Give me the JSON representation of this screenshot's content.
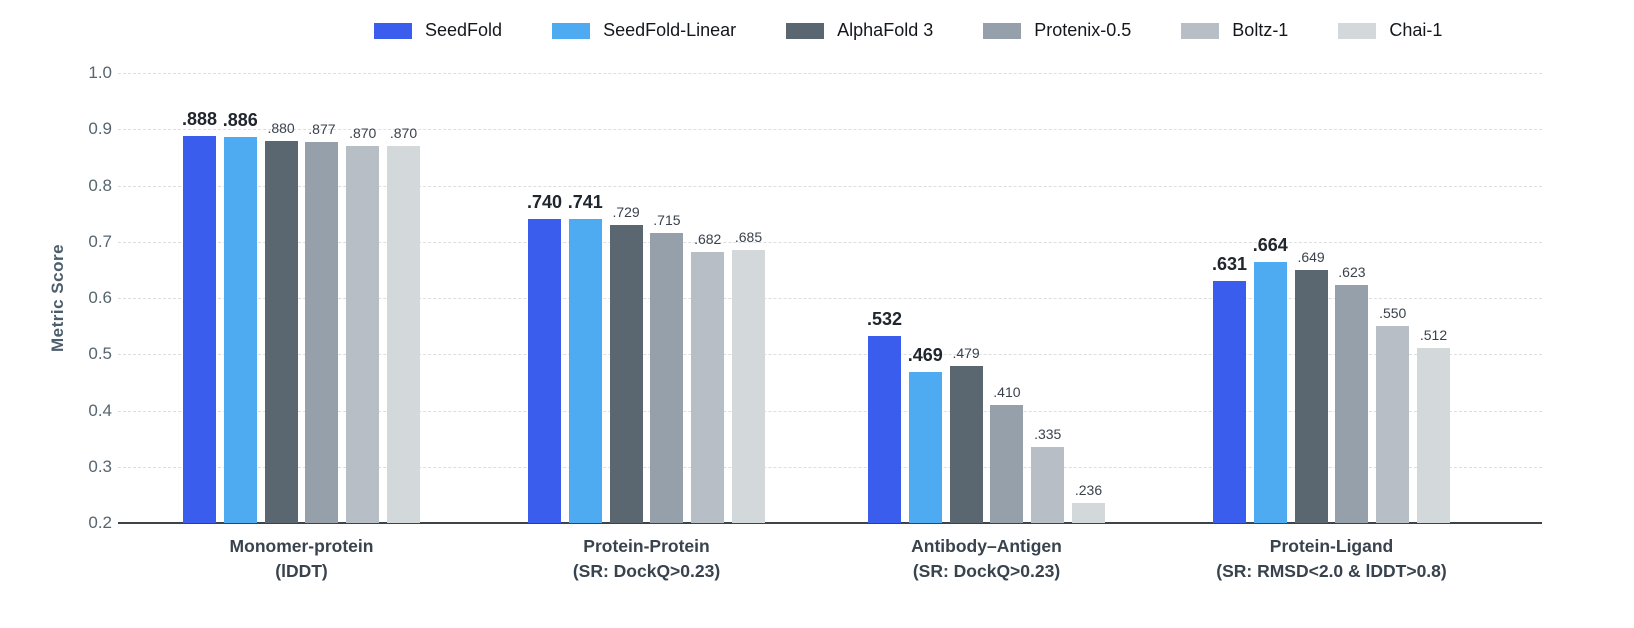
{
  "chart_data": {
    "type": "bar",
    "title": "",
    "xlabel": "",
    "ylabel": "Metric Score",
    "ylim": [
      0.2,
      1.0
    ],
    "yticks": [
      0.2,
      0.3,
      0.4,
      0.5,
      0.6,
      0.7,
      0.8,
      0.9,
      1.0
    ],
    "grid": "horizontal-dashed",
    "legend_position": "top-center",
    "background_color": "#ffffff",
    "axis_line_color": "#3c434a",
    "categories": [
      {
        "label": "Monomer-protein",
        "sublabel": "(lDDT)"
      },
      {
        "label": "Protein-Protein",
        "sublabel": "(SR: DockQ>0.23)"
      },
      {
        "label": "Antibody–Antigen",
        "sublabel": "(SR: DockQ>0.23)"
      },
      {
        "label": "Protein-Ligand",
        "sublabel": "(SR: RMSD<2.0 & lDDT>0.8)"
      }
    ],
    "series": [
      {
        "name": "SeedFold",
        "color": "#3B5DEE",
        "label_bold": true,
        "values": [
          0.888,
          0.74,
          0.532,
          0.631
        ]
      },
      {
        "name": "SeedFold-Linear",
        "color": "#4FABF1",
        "label_bold": true,
        "values": [
          0.886,
          0.741,
          0.469,
          0.664
        ]
      },
      {
        "name": "AlphaFold 3",
        "color": "#5A6771",
        "label_bold": false,
        "values": [
          0.88,
          0.729,
          0.479,
          0.649
        ]
      },
      {
        "name": "Protenix-0.5",
        "color": "#95A0AA",
        "label_bold": false,
        "values": [
          0.877,
          0.715,
          0.41,
          0.623
        ]
      },
      {
        "name": "Boltz-1",
        "color": "#B7BEC5",
        "label_bold": false,
        "values": [
          0.87,
          0.682,
          0.335,
          0.55
        ]
      },
      {
        "name": "Chai-1",
        "color": "#D3D8DB",
        "label_bold": false,
        "values": [
          0.87,
          0.685,
          0.236,
          0.512
        ]
      }
    ],
    "value_label_style": "leading-dot-three-decimals"
  }
}
